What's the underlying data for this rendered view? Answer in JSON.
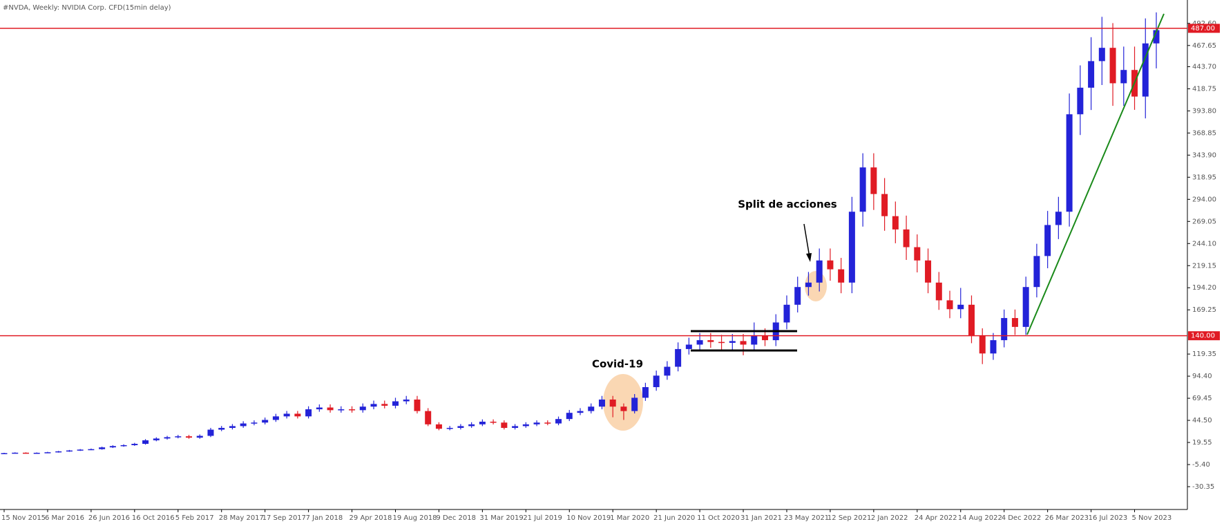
{
  "chart_data": {
    "type": "candlestick",
    "title": "#NVDA, Weekly:  NVIDIA Corp. CFD(15min delay)",
    "categories": [
      "15 Nov 2015",
      null,
      null,
      null,
      "6 Mar 2016",
      null,
      null,
      null,
      "26 Jun 2016",
      null,
      null,
      null,
      "16 Oct 2016",
      null,
      null,
      null,
      "5 Feb 2017",
      null,
      null,
      null,
      "28 May 2017",
      null,
      null,
      null,
      "17 Sep 2017",
      null,
      null,
      null,
      "7 Jan 2018",
      null,
      null,
      null,
      "29 Apr 2018",
      null,
      null,
      null,
      "19 Aug 2018",
      null,
      null,
      null,
      "9 Dec 2018",
      null,
      null,
      null,
      "31 Mar 2019",
      null,
      null,
      null,
      "21 Jul 2019",
      null,
      null,
      null,
      "10 Nov 2019",
      null,
      null,
      null,
      "1 Mar 2020",
      null,
      null,
      null,
      "21 Jun 2020",
      null,
      null,
      null,
      "11 Oct 2020",
      null,
      null,
      null,
      "31 Jan 2021",
      null,
      null,
      null,
      "23 May 2021",
      null,
      null,
      null,
      "12 Sep 2021",
      null,
      null,
      null,
      "2 Jan 2022",
      null,
      null,
      null,
      "24 Apr 2022",
      null,
      null,
      null,
      "14 Aug 2022",
      null,
      null,
      null,
      "4 Dec 2022",
      null,
      null,
      null,
      "26 Mar 2023",
      null,
      null,
      null,
      "16 Jul 2023",
      null,
      null,
      null,
      "5 Nov 2023",
      null,
      null
    ],
    "open": [
      7.2,
      7.5,
      8.0,
      7.4,
      7.9,
      8.5,
      9.5,
      10.5,
      11.5,
      12.0,
      14.0,
      15.5,
      16.5,
      18.0,
      22.0,
      24.0,
      25.5,
      26.5,
      25.0,
      27.0,
      34,
      36,
      38,
      41,
      42,
      45,
      49,
      52,
      49,
      57,
      59,
      56,
      57,
      56,
      60,
      63,
      61,
      66,
      68,
      55,
      40,
      35,
      36,
      38,
      40,
      43,
      42,
      36,
      38,
      40,
      42,
      41,
      46,
      53,
      55,
      60,
      68,
      60,
      55,
      70,
      82,
      95,
      105,
      125,
      130,
      135,
      133,
      132,
      134,
      130,
      140,
      135,
      155,
      175,
      195,
      200,
      225,
      215,
      200,
      280,
      330,
      300,
      275,
      260,
      240,
      225,
      200,
      180,
      170,
      175,
      140,
      120,
      135,
      160,
      150,
      195,
      230,
      265,
      280,
      390,
      420,
      450,
      465,
      425,
      440,
      410,
      470
    ],
    "high": [
      7.9,
      8.4,
      8.4,
      8.3,
      9.0,
      10.0,
      11.1,
      12.1,
      12.7,
      14.8,
      16.4,
      17.5,
      19.1,
      23.3,
      25.4,
      27.0,
      28.1,
      28.1,
      28.6,
      36.0,
      38.2,
      40.3,
      43.5,
      44.5,
      47.7,
      51.9,
      55.1,
      55.1,
      60.4,
      62.5,
      62.5,
      60.4,
      60.4,
      63.6,
      66.8,
      66.8,
      70.0,
      72.1,
      72.1,
      58.3,
      42.4,
      38.2,
      40.3,
      42.4,
      45.6,
      45.6,
      44.5,
      40.3,
      42.4,
      44.5,
      44.5,
      48.8,
      56.2,
      58.3,
      63.6,
      72.1,
      72.1,
      63.6,
      74.2,
      86.9,
      100.7,
      111.3,
      132.5,
      137.8,
      143.1,
      143.1,
      141.0,
      142.0,
      142.0,
      155.0,
      148.4,
      164.3,
      185.5,
      206.7,
      212.0,
      238.5,
      238.5,
      227.9,
      296.8,
      346.0,
      346.0,
      318.0,
      291.5,
      275.6,
      254.4,
      238.5,
      212.0,
      190.8,
      194.0,
      185.5,
      148.4,
      143.1,
      169.6,
      169.6,
      206.7,
      243.8,
      280.9,
      296.8,
      413.4,
      445.2,
      477.0,
      500.0,
      492.9,
      466.4,
      466.4,
      498.2,
      505.0
    ],
    "low": [
      6.9,
      7.1,
      7.0,
      7.0,
      7.5,
      8.1,
      9.0,
      10.0,
      10.9,
      11.4,
      13.3,
      14.7,
      15.7,
      17.1,
      20.9,
      22.8,
      24.2,
      23.7,
      23.7,
      25.6,
      32.3,
      34.2,
      36.1,
      38.9,
      39.9,
      42.8,
      46.6,
      46.6,
      46.6,
      54.2,
      53.2,
      53.2,
      53.2,
      53.2,
      57.0,
      58.0,
      58.0,
      62.7,
      52.3,
      38.0,
      33.3,
      33.3,
      34.2,
      36.1,
      38.0,
      39.9,
      34.2,
      34.2,
      36.1,
      38.0,
      39.0,
      39.0,
      43.7,
      50.4,
      52.3,
      57.0,
      48.0,
      45.0,
      52.3,
      66.5,
      77.9,
      90.3,
      99.8,
      118.8,
      123.5,
      126.4,
      124.1,
      124.1,
      118.0,
      123.5,
      128.3,
      128.3,
      147.3,
      166.3,
      185.3,
      190.0,
      202.1,
      188.0,
      188.0,
      263.2,
      282.0,
      258.5,
      244.4,
      225.6,
      211.5,
      188.0,
      169.2,
      159.8,
      159.8,
      131.6,
      108.0,
      112.8,
      126.9,
      141.0,
      141.0,
      183.3,
      216.2,
      249.1,
      263.2,
      366.6,
      394.8,
      423.0,
      399.5,
      399.5,
      395.0,
      385.4,
      441.8
    ],
    "close": [
      7.5,
      8.0,
      7.4,
      7.9,
      8.5,
      9.5,
      10.5,
      11.5,
      12.0,
      14.0,
      15.5,
      16.5,
      18.0,
      22.0,
      24.0,
      25.5,
      26.5,
      25.0,
      27.0,
      34,
      36,
      38,
      41,
      42,
      45,
      49,
      52,
      49,
      57,
      59,
      56,
      57,
      56,
      60,
      63,
      61,
      66,
      68,
      55,
      40,
      35,
      36,
      38,
      40,
      43,
      42,
      36,
      38,
      40,
      42,
      41,
      46,
      53,
      55,
      60,
      68,
      60,
      55,
      70,
      82,
      95,
      105,
      125,
      130,
      135,
      133,
      132,
      134,
      130,
      140,
      135,
      155,
      175,
      195,
      200,
      225,
      215,
      200,
      280,
      330,
      300,
      275,
      260,
      240,
      225,
      200,
      180,
      170,
      175,
      140,
      120,
      135,
      160,
      150,
      195,
      230,
      265,
      280,
      390,
      420,
      450,
      465,
      425,
      440,
      410,
      470,
      485
    ],
    "up_color": "#2323d8",
    "down_color": "#e01b24",
    "ylim": [
      -56.1,
      514.3
    ],
    "yticks": [
      {
        "value": 492.6,
        "label": "492.60"
      },
      467.65,
      {
        "value": 443.7,
        "label": "443.70"
      },
      418.75,
      {
        "value": 393.8,
        "label": "393.80"
      },
      368.85,
      {
        "value": 343.9,
        "label": "343.90"
      },
      318.95,
      {
        "value": 294,
        "label": "294.00"
      },
      269.05,
      {
        "value": 244.1,
        "label": "244.10"
      },
      219.15,
      {
        "value": 194.2,
        "label": "194.20"
      },
      169.25,
      119.35,
      {
        "value": 94.4,
        "label": "94.40"
      },
      69.45,
      {
        "value": 44.5,
        "label": "44.50"
      },
      19.55,
      {
        "value": -5.4,
        "label": "-5.40"
      },
      {
        "value": -30.35,
        "label": "-30.35"
      }
    ],
    "levels": [
      {
        "value": 487,
        "label": "487.00",
        "color": "#e01b24"
      },
      {
        "value": 140,
        "label": "140.00",
        "color": "#e01b24"
      }
    ],
    "annotations": [
      "Covid-19",
      "Split de acciones"
    ]
  }
}
